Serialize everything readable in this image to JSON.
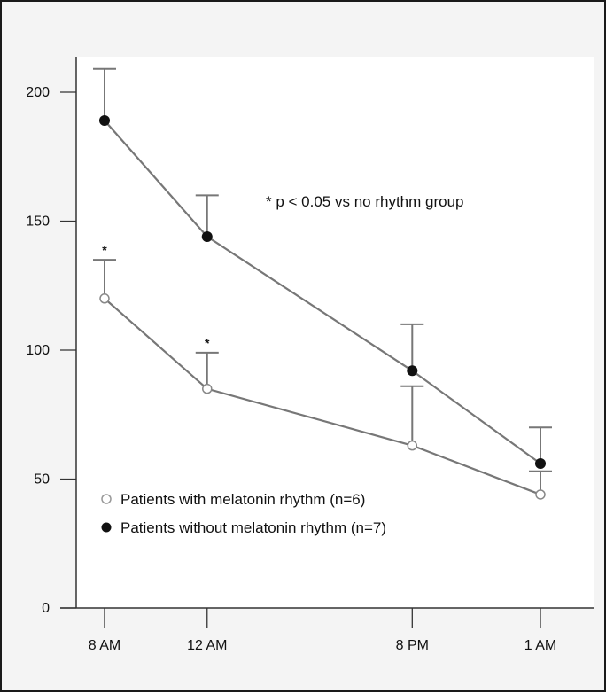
{
  "chart_data": {
    "type": "line",
    "title": "",
    "xlabel": "",
    "ylabel": "",
    "categories": [
      "8 AM",
      "12 AM",
      "8  PM",
      "1 AM"
    ],
    "x_positions_hours": [
      0,
      4,
      12,
      17
    ],
    "ylim": [
      0,
      200
    ],
    "yticks": [
      0,
      50,
      100,
      150,
      200
    ],
    "grid": false,
    "legend_placement": "bottom-left",
    "series": [
      {
        "name": "Patients without melatonin rhythm (n=7)",
        "marker": "filled-circle",
        "values": [
          189,
          144,
          92,
          56
        ],
        "error_upper": [
          209,
          160,
          110,
          70
        ]
      },
      {
        "name": "Patients with melatonin rhythm (n=6)",
        "marker": "open-circle",
        "values": [
          120,
          85,
          63,
          44
        ],
        "error_upper": [
          135,
          99,
          86,
          53
        ]
      }
    ],
    "significance_marks": [
      {
        "category": "8 AM",
        "label": "*"
      },
      {
        "category": "12 AM",
        "label": "*"
      }
    ],
    "annotation": "* p < 0.05 vs no rhythm group",
    "colors": {
      "line": "#777777",
      "marker": "#111111",
      "plot_bg": "#ffffff",
      "page_bg": "#f4f4f4"
    }
  }
}
